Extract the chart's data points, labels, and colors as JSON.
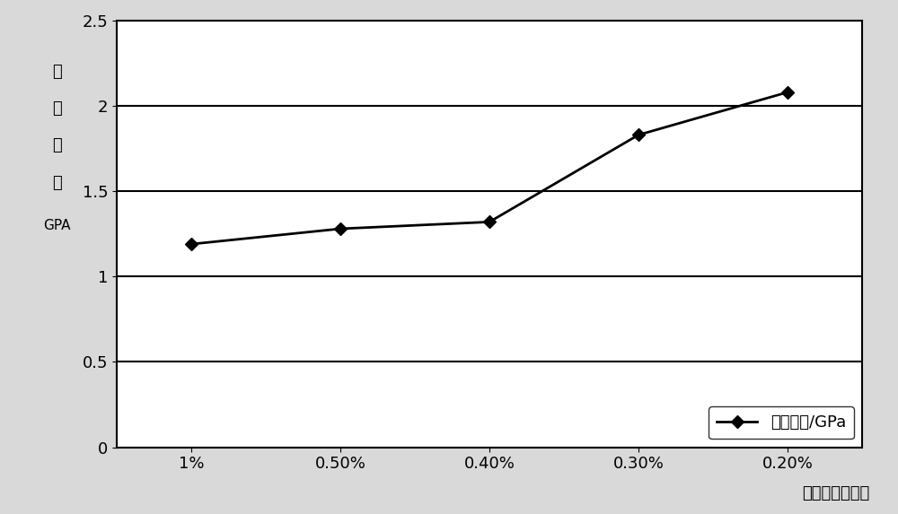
{
  "x_labels": [
    "1%",
    "0.50%",
    "0.40%",
    "0.30%",
    "0.20%"
  ],
  "x_positions": [
    0,
    1,
    2,
    3,
    4
  ],
  "y_values": [
    1.19,
    1.28,
    1.32,
    1.83,
    2.08
  ],
  "ylim": [
    0,
    2.5
  ],
  "yticks": [
    0,
    0.5,
    1.0,
    1.5,
    2.0,
    2.5
  ],
  "ylabel_chars": [
    "弹",
    "性",
    "模",
    "量"
  ],
  "ylabel_unit": "GPA",
  "xlabel": "硬化剂质量含量",
  "legend_label_text": "弹性模量/GPa",
  "line_color": "#000000",
  "marker": "D",
  "marker_size": 7,
  "line_width": 2,
  "bg_color": "#d9d9d9",
  "plot_bg_color": "#ffffff",
  "grid_color": "#000000"
}
